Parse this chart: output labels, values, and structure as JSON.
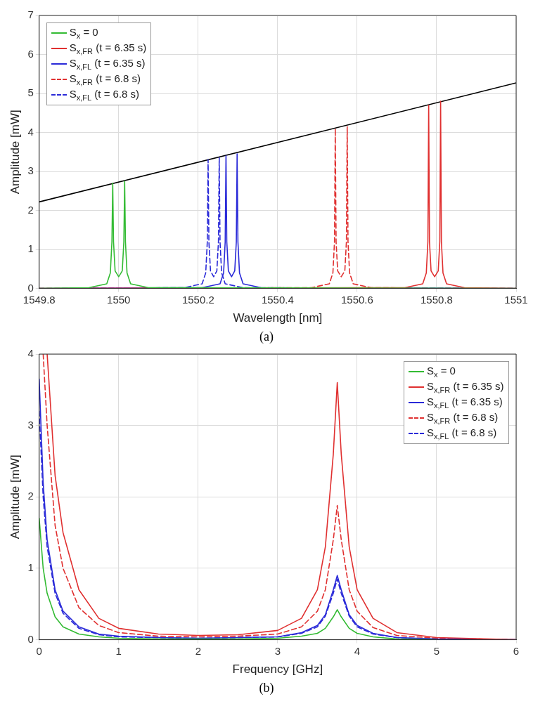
{
  "chart_data": [
    {
      "type": "line",
      "xlabel": "Wavelength [nm]",
      "ylabel": "Amplitude [mW]",
      "annotations": [
        "(a)"
      ],
      "xlim": [
        1549.8,
        1551
      ],
      "xticks": [
        1549.8,
        1550,
        1550.2,
        1550.4,
        1550.6,
        1550.8,
        1551
      ],
      "ylim": [
        0,
        7
      ],
      "yticks": [
        0,
        1,
        2,
        3,
        4,
        5,
        6,
        7
      ],
      "grid": true,
      "legend": "top left",
      "marker": "none",
      "series": [
        {
          "name": "S$_{x}$ = 0",
          "color": "#33bb33",
          "line_style": "solid",
          "x": [
            1549.8,
            1549.925,
            1549.97,
            1549.979,
            1549.983,
            1549.985,
            1549.987,
            1549.991,
            1550,
            1550.009,
            1550.013,
            1550.015,
            1550.017,
            1550.021,
            1550.03,
            1550.075,
            1551
          ],
          "values": [
            0,
            0.02,
            0.12,
            0.4,
            1.2,
            2.7,
            1.2,
            0.45,
            0.3,
            0.45,
            1.2,
            2.75,
            1.2,
            0.4,
            0.12,
            0.02,
            0
          ]
        },
        {
          "name": "S$_{x,FR}$ (t = 6.35 s)",
          "color": "#e03030",
          "line_style": "solid",
          "x": [
            1549.8,
            1550.72,
            1550.765,
            1550.774,
            1550.778,
            1550.78,
            1550.782,
            1550.786,
            1550.795,
            1550.804,
            1550.808,
            1550.81,
            1550.812,
            1550.816,
            1550.825,
            1550.87,
            1551
          ],
          "values": [
            0,
            0.02,
            0.12,
            0.4,
            1.2,
            4.7,
            1.2,
            0.45,
            0.3,
            0.45,
            1.2,
            4.8,
            1.2,
            0.4,
            0.12,
            0.02,
            0
          ]
        },
        {
          "name": "S$_{x,FL}$ (t = 6.35 s)",
          "color": "#2a2ad8",
          "line_style": "solid",
          "x": [
            1549.8,
            1550.21,
            1550.255,
            1550.264,
            1550.268,
            1550.27,
            1550.272,
            1550.276,
            1550.284,
            1550.292,
            1550.296,
            1550.298,
            1550.3,
            1550.304,
            1550.313,
            1550.358,
            1551
          ],
          "values": [
            0,
            0.02,
            0.12,
            0.4,
            1.2,
            3.4,
            1.2,
            0.45,
            0.3,
            0.45,
            1.2,
            3.45,
            1.2,
            0.4,
            0.12,
            0.02,
            0
          ]
        },
        {
          "name": "S$_{x,FR}$ (t = 6.8 s)",
          "color": "#e03030",
          "line_style": "dashed",
          "x": [
            1549.8,
            1550.485,
            1550.53,
            1550.539,
            1550.543,
            1550.545,
            1550.547,
            1550.551,
            1550.56,
            1550.569,
            1550.573,
            1550.575,
            1550.577,
            1550.581,
            1550.59,
            1550.635,
            1551
          ],
          "values": [
            0,
            0.02,
            0.12,
            0.4,
            1.2,
            4.1,
            1.2,
            0.45,
            0.3,
            0.45,
            1.2,
            4.15,
            1.2,
            0.4,
            0.12,
            0.02,
            0
          ]
        },
        {
          "name": "S$_{x,FL}$ (t = 6.8 s)",
          "color": "#2a2ad8",
          "line_style": "dashed",
          "x": [
            1549.8,
            1550.165,
            1550.21,
            1550.219,
            1550.223,
            1550.225,
            1550.227,
            1550.231,
            1550.239,
            1550.247,
            1550.251,
            1550.253,
            1550.255,
            1550.259,
            1550.268,
            1550.313,
            1551
          ],
          "values": [
            0,
            0.02,
            0.12,
            0.4,
            1.2,
            3.3,
            1.2,
            0.45,
            0.3,
            0.45,
            1.2,
            3.35,
            1.2,
            0.4,
            0.12,
            0.02,
            0
          ]
        },
        {
          "color": "#000000",
          "line_style": "solid",
          "x": [
            1549.8,
            1551
          ],
          "values": [
            2.22,
            5.27
          ]
        }
      ]
    },
    {
      "type": "line",
      "xlabel": "Frequency [GHz]",
      "ylabel": "Amplitude [mW]",
      "annotations": [
        "(b)"
      ],
      "xlim": [
        0,
        6
      ],
      "xticks": [
        0,
        1,
        2,
        3,
        4,
        5,
        6
      ],
      "ylim": [
        0,
        4
      ],
      "yticks": [
        0,
        1,
        2,
        3,
        4
      ],
      "grid": true,
      "legend": "top right",
      "marker": "none",
      "series": [
        {
          "name": "S$_{x}$ = 0",
          "color": "#33bb33",
          "line_style": "solid",
          "x": [
            0,
            0.05,
            0.1,
            0.2,
            0.3,
            0.5,
            0.75,
            1,
            1.5,
            2,
            2.5,
            3,
            3.3,
            3.5,
            3.6,
            3.7,
            3.75,
            3.8,
            3.9,
            4,
            4.2,
            4.5,
            5
          ],
          "values": [
            1.7,
            1.0,
            0.65,
            0.32,
            0.18,
            0.08,
            0.04,
            0.02,
            0.01,
            0.01,
            0.01,
            0.02,
            0.05,
            0.09,
            0.16,
            0.32,
            0.42,
            0.32,
            0.16,
            0.09,
            0.04,
            0.01,
            0
          ]
        },
        {
          "name": "S$_{x,FR}$ (t = 6.35 s)",
          "color": "#e03030",
          "line_style": "solid",
          "x": [
            0.1,
            0.2,
            0.3,
            0.5,
            0.75,
            1,
            1.5,
            2,
            2.5,
            3,
            3.3,
            3.5,
            3.6,
            3.7,
            3.75,
            3.8,
            3.9,
            4,
            4.2,
            4.5,
            5,
            6
          ],
          "values": [
            4,
            2.3,
            1.5,
            0.7,
            0.3,
            0.16,
            0.08,
            0.06,
            0.07,
            0.13,
            0.3,
            0.7,
            1.3,
            2.6,
            3.6,
            2.6,
            1.3,
            0.7,
            0.3,
            0.1,
            0.03,
            0
          ]
        },
        {
          "name": "S$_{x,FL}$ (t = 6.35 s)",
          "color": "#2a2ad8",
          "line_style": "solid",
          "x": [
            0,
            0.05,
            0.1,
            0.2,
            0.3,
            0.5,
            0.75,
            1,
            1.5,
            2,
            2.5,
            3,
            3.3,
            3.5,
            3.6,
            3.7,
            3.75,
            3.8,
            3.9,
            4,
            4.2,
            4.5,
            5,
            6
          ],
          "values": [
            3.65,
            2.2,
            1.4,
            0.7,
            0.4,
            0.18,
            0.08,
            0.05,
            0.03,
            0.02,
            0.03,
            0.04,
            0.1,
            0.2,
            0.35,
            0.7,
            0.9,
            0.7,
            0.35,
            0.2,
            0.09,
            0.03,
            0.01,
            0
          ]
        },
        {
          "name": "S$_{x,FR}$ (t = 6.8 s)",
          "color": "#e03030",
          "line_style": "dashed",
          "x": [
            0.05,
            0.1,
            0.2,
            0.3,
            0.5,
            0.75,
            1,
            1.5,
            2,
            2.5,
            3,
            3.3,
            3.5,
            3.6,
            3.7,
            3.75,
            3.8,
            3.9,
            4,
            4.2,
            4.5,
            5,
            6
          ],
          "values": [
            4,
            3.0,
            1.6,
            1.0,
            0.45,
            0.2,
            0.1,
            0.05,
            0.04,
            0.05,
            0.08,
            0.18,
            0.4,
            0.7,
            1.4,
            1.88,
            1.4,
            0.7,
            0.4,
            0.17,
            0.06,
            0.02,
            0
          ]
        },
        {
          "name": "S$_{x,FL}$ (t = 6.8 s)",
          "color": "#2a2ad8",
          "line_style": "dashed",
          "x": [
            0,
            0.05,
            0.1,
            0.2,
            0.3,
            0.5,
            0.75,
            1,
            1.5,
            2,
            2.5,
            3,
            3.3,
            3.5,
            3.6,
            3.7,
            3.75,
            3.8,
            3.9,
            4,
            4.2,
            4.5,
            5,
            6
          ],
          "values": [
            3.2,
            2.0,
            1.3,
            0.65,
            0.37,
            0.16,
            0.07,
            0.04,
            0.03,
            0.02,
            0.03,
            0.04,
            0.09,
            0.18,
            0.33,
            0.65,
            0.85,
            0.65,
            0.33,
            0.18,
            0.08,
            0.03,
            0.01,
            0
          ]
        }
      ]
    }
  ]
}
